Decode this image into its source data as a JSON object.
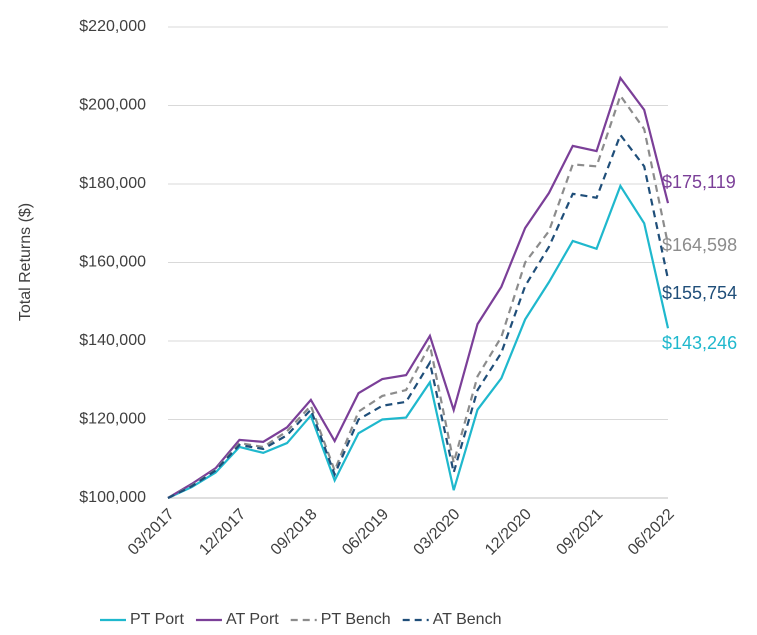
{
  "chart_data": {
    "type": "line",
    "y_label": "Total Returns ($)",
    "categories": [
      "03/2017",
      null,
      null,
      "12/2017",
      null,
      null,
      "09/2018",
      null,
      null,
      "06/2019",
      null,
      null,
      "03/2020",
      null,
      null,
      "12/2020",
      null,
      null,
      "09/2021",
      null,
      null,
      "06/2022"
    ],
    "ylim": [
      100000,
      220000
    ],
    "yticks": [
      {
        "value": 100000,
        "label": "$100,000"
      },
      {
        "value": 120000,
        "label": "$120,000"
      },
      {
        "value": 140000,
        "label": "$140,000"
      },
      {
        "value": 160000,
        "label": "$160,000"
      },
      {
        "value": 180000,
        "label": "$180,000"
      },
      {
        "value": 200000,
        "label": "$200,000"
      },
      {
        "value": 220000,
        "label": "$220,000"
      }
    ],
    "grid": true,
    "legend": "bottom",
    "series": [
      {
        "name": "PT Port",
        "color": "#1fb8cd",
        "dashed": false,
        "values": [
          100000,
          102800,
          106500,
          113000,
          111500,
          114000,
          121000,
          104500,
          116500,
          120000,
          120500,
          129500,
          102000,
          122500,
          130500,
          145500,
          155000,
          165500,
          163500,
          179500,
          170000,
          143246
        ],
        "value_labels": [
          null,
          null,
          null,
          null,
          null,
          null,
          null,
          null,
          null,
          null,
          null,
          null,
          null,
          null,
          null,
          null,
          null,
          null,
          null,
          null,
          null,
          "$143,246"
        ]
      },
      {
        "name": "AT Port",
        "color": "#7b3f98",
        "dashed": false,
        "values": [
          100000,
          103600,
          107600,
          114800,
          114300,
          118000,
          125000,
          114500,
          126700,
          130300,
          131300,
          141300,
          122400,
          144300,
          153800,
          168800,
          177700,
          189700,
          188400,
          207000,
          198900,
          175119
        ],
        "value_labels": [
          null,
          null,
          null,
          null,
          null,
          null,
          null,
          null,
          null,
          null,
          null,
          null,
          null,
          null,
          null,
          null,
          null,
          null,
          null,
          null,
          null,
          "$175,119"
        ]
      },
      {
        "name": "PT Bench",
        "color": "#8c8c8c",
        "dashed": true,
        "values": [
          100000,
          103200,
          107200,
          114000,
          113000,
          117000,
          123500,
          107000,
          122000,
          126000,
          127500,
          139000,
          109000,
          131000,
          141000,
          160000,
          168000,
          185000,
          184500,
          202500,
          194000,
          164598
        ],
        "value_labels": [
          null,
          null,
          null,
          null,
          null,
          null,
          null,
          null,
          null,
          null,
          null,
          null,
          null,
          null,
          null,
          null,
          null,
          null,
          null,
          null,
          null,
          "$164,598"
        ]
      },
      {
        "name": "AT Bench",
        "color": "#1f4e79",
        "dashed": true,
        "values": [
          100000,
          103000,
          107000,
          113500,
          112500,
          116000,
          122500,
          106000,
          120000,
          123500,
          124500,
          134500,
          106500,
          127500,
          137000,
          154000,
          164000,
          177500,
          176500,
          192500,
          184500,
          155754
        ],
        "value_labels": [
          null,
          null,
          null,
          null,
          null,
          null,
          null,
          null,
          null,
          null,
          null,
          null,
          null,
          null,
          null,
          null,
          null,
          null,
          null,
          null,
          null,
          "$155,754"
        ]
      }
    ]
  }
}
